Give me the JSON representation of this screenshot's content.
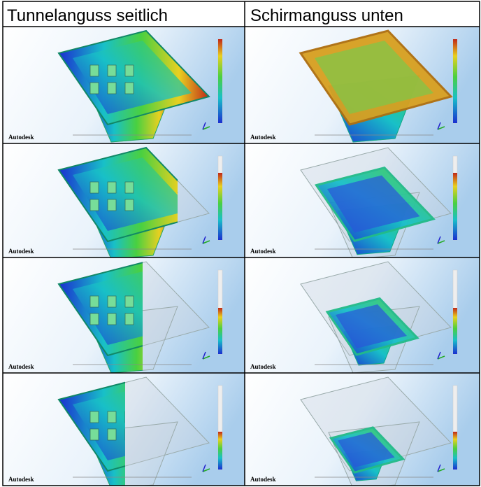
{
  "header": {
    "columns": [
      "Tunnelanguss seitlich",
      "Schirmanguss unten"
    ]
  },
  "table": {
    "rows": [
      [
        {
          "logo": "Autodesk"
        },
        {
          "logo": "Autodesk"
        }
      ],
      [
        {
          "logo": "Autodesk"
        },
        {
          "logo": "Autodesk"
        }
      ],
      [
        {
          "logo": "Autodesk"
        },
        {
          "logo": "Autodesk"
        }
      ],
      [
        {
          "logo": "Autodesk"
        },
        {
          "logo": "Autodesk"
        }
      ]
    ]
  }
}
